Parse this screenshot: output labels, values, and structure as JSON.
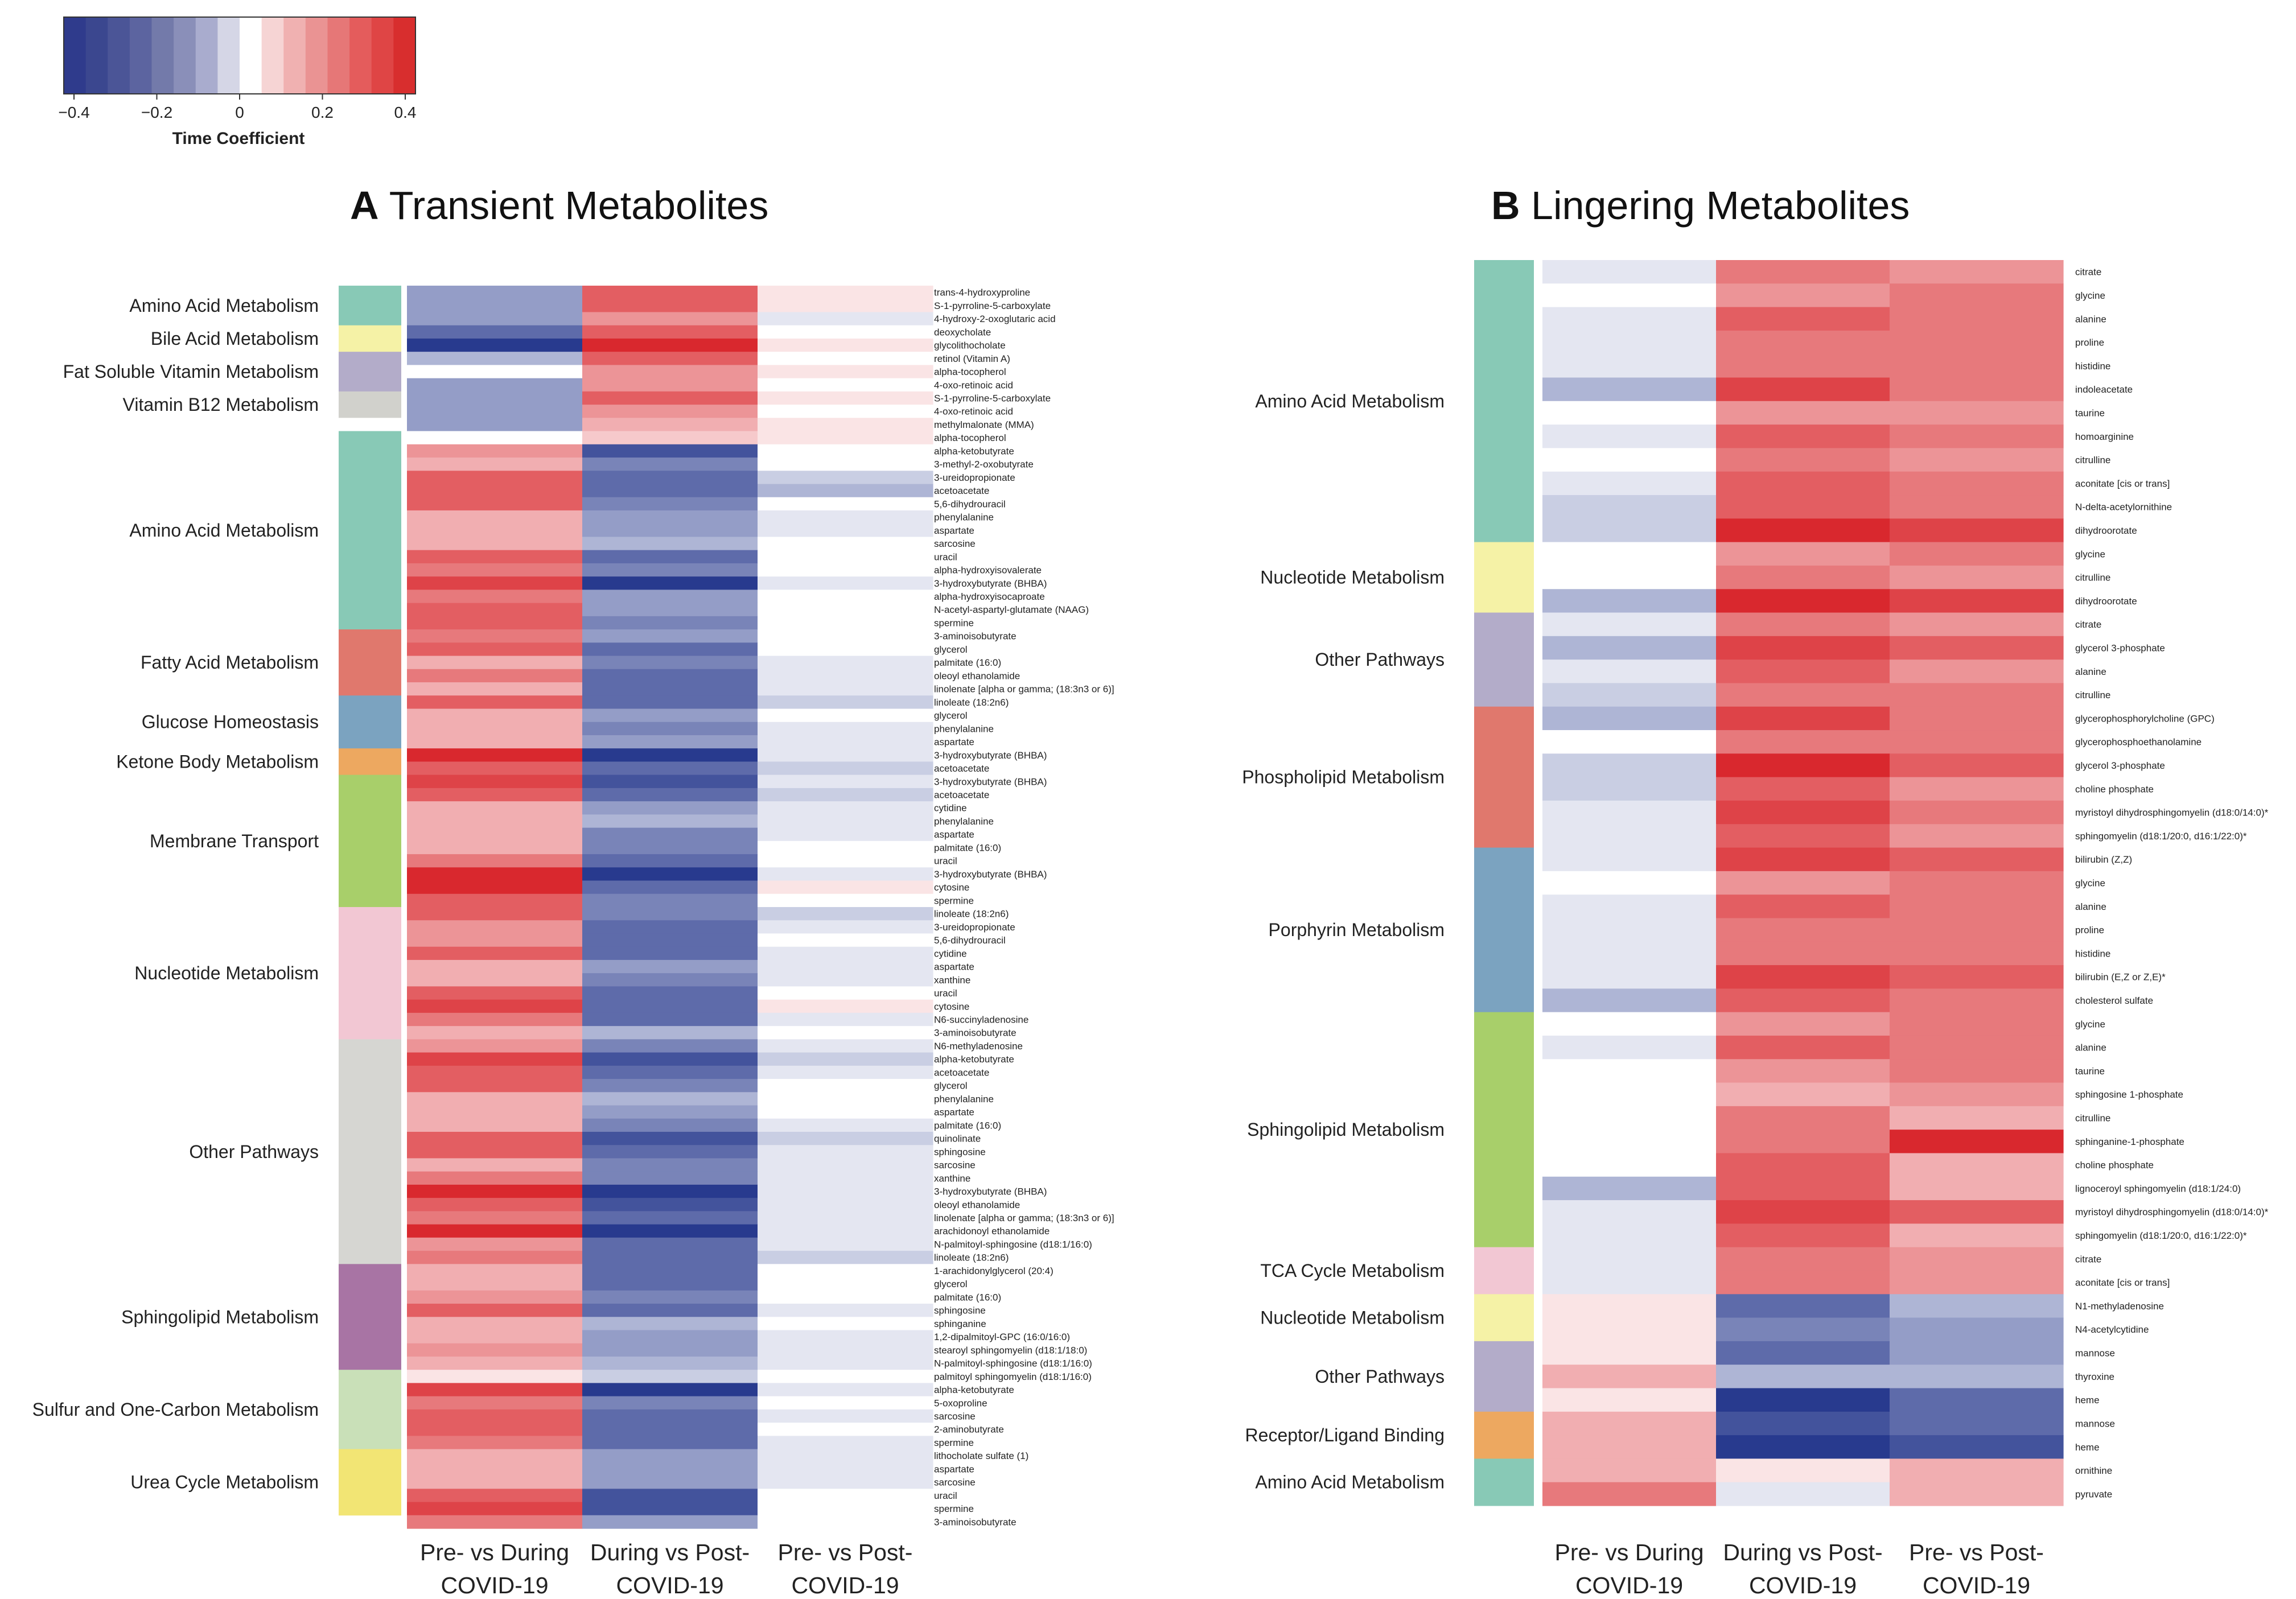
{
  "chart_data": [
    {
      "type": "heatmap",
      "panel_letter": "A",
      "title": "Transient Metabolites",
      "columns": [
        "Pre- vs During COVID-19",
        "During vs Post-COVID-19",
        "Pre- vs Post-COVID-19"
      ],
      "categories": [
        {
          "name": "Amino Acid Metabolism",
          "color": "#88c9b6",
          "rows": [
            0,
            3
          ]
        },
        {
          "name": "Bile Acid Metabolism",
          "color": "#f5f2a6",
          "rows": [
            3,
            5
          ]
        },
        {
          "name": "Fat Soluble Vitamin Metabolism",
          "color": "#b3acc9",
          "rows": [
            5,
            8
          ]
        },
        {
          "name": "Vitamin B12 Metabolism",
          "color": "#d1d1cc",
          "rows": [
            8,
            10
          ]
        },
        {
          "name": "",
          "color": "#ffffff",
          "rows": [
            10,
            11
          ]
        },
        {
          "name": "Amino Acid Metabolism",
          "color": "#88c9b6",
          "rows": [
            11,
            26
          ]
        },
        {
          "name": "Fatty Acid Metabolism",
          "color": "#e0786d",
          "rows": [
            26,
            31
          ]
        },
        {
          "name": "Glucose Homeostasis",
          "color": "#7ba3c0",
          "rows": [
            31,
            35
          ]
        },
        {
          "name": "Ketone Body Metabolism",
          "color": "#eda860",
          "rows": [
            35,
            37
          ]
        },
        {
          "name": "Membrane Transport",
          "color": "#a8cf6a",
          "rows": [
            37,
            47
          ]
        },
        {
          "name": "Nucleotide Metabolism",
          "color": "#f2c7d3",
          "rows": [
            47,
            57
          ]
        },
        {
          "name": "Other Pathways",
          "color": "#d6d6d2",
          "rows": [
            57,
            74
          ]
        },
        {
          "name": "Sphingolipid Metabolism",
          "color": "#a874a4",
          "rows": [
            74,
            82
          ]
        },
        {
          "name": "Sulfur and One-Carbon Metabolism",
          "color": "#c9e0b8",
          "rows": [
            82,
            88
          ]
        },
        {
          "name": "Urea Cycle Metabolism",
          "color": "#f2e574",
          "rows": [
            88,
            93
          ]
        }
      ],
      "rows": [
        "trans-4-hydroxyproline",
        "S-1-pyrroline-5-carboxylate",
        "4-hydroxy-2-oxoglutaric acid",
        "deoxycholate",
        "glycolithocholate",
        "retinol (Vitamin A)",
        "alpha-tocopherol",
        "4-oxo-retinoic acid",
        "S-1-pyrroline-5-carboxylate",
        "4-oxo-retinoic acid",
        "methylmalonate (MMA)",
        "alpha-tocopherol",
        "alpha-ketobutyrate",
        "3-methyl-2-oxobutyrate",
        "3-ureidopropionate",
        "acetoacetate",
        "5,6-dihydrouracil",
        "phenylalanine",
        "aspartate",
        "sarcosine",
        "uracil",
        "alpha-hydroxyisovalerate",
        "3-hydroxybutyrate (BHBA)",
        "alpha-hydroxyisocaproate",
        "N-acetyl-aspartyl-glutamate (NAAG)",
        "spermine",
        "3-aminoisobutyrate",
        "glycerol",
        "palmitate (16:0)",
        "oleoyl ethanolamide",
        "linolenate [alpha or gamma; (18:3n3 or 6)]",
        "linoleate (18:2n6)",
        "glycerol",
        "phenylalanine",
        "aspartate",
        "3-hydroxybutyrate (BHBA)",
        "acetoacetate",
        "3-hydroxybutyrate (BHBA)",
        "acetoacetate",
        "cytidine",
        "phenylalanine",
        "aspartate",
        "palmitate (16:0)",
        "uracil",
        "3-hydroxybutyrate (BHBA)",
        "cytosine",
        "spermine",
        "linoleate (18:2n6)",
        "3-ureidopropionate",
        "5,6-dihydrouracil",
        "cytidine",
        "aspartate",
        "xanthine",
        "uracil",
        "cytosine",
        "N6-succinyladenosine",
        "3-aminoisobutyrate",
        "N6-methyladenosine",
        "alpha-ketobutyrate",
        "acetoacetate",
        "glycerol",
        "phenylalanine",
        "aspartate",
        "palmitate (16:0)",
        "quinolinate",
        "sphingosine",
        "sarcosine",
        "xanthine",
        "3-hydroxybutyrate (BHBA)",
        "oleoyl ethanolamide",
        "linolenate [alpha or gamma; (18:3n3 or 6)]",
        "arachidonoyl ethanolamide",
        "N-palmitoyl-sphingosine (d18:1/16:0)",
        "linoleate (18:2n6)",
        "1-arachidonylglycerol (20:4)",
        "glycerol",
        "palmitate (16:0)",
        "sphingosine",
        "sphinganine",
        "1,2-dipalmitoyl-GPC (16:0/16:0)",
        "stearoyl sphingomyelin (d18:1/18:0)",
        "N-palmitoyl-sphingosine (d18:1/16:0)",
        "palmitoyl sphingomyelin (d18:1/16:0)",
        "alpha-ketobutyrate",
        "5-oxoproline",
        "sarcosine",
        "2-aminobutyrate",
        "spermine",
        "lithocholate sulfate (1)",
        "aspartate",
        "sarcosine",
        "uracil",
        "spermine",
        "3-aminoisobutyrate"
      ],
      "values": [
        [
          -0.2,
          0.3,
          0.05
        ],
        [
          -0.2,
          0.3,
          0.05
        ],
        [
          -0.2,
          0.2,
          -0.05
        ],
        [
          -0.3,
          0.3,
          0
        ],
        [
          -0.4,
          0.4,
          0.05
        ],
        [
          -0.15,
          0.3,
          0
        ],
        [
          0,
          0.2,
          0.05
        ],
        [
          -0.2,
          0.2,
          0
        ],
        [
          -0.2,
          0.3,
          0.05
        ],
        [
          -0.2,
          0.2,
          0
        ],
        [
          -0.2,
          0.15,
          0.05
        ],
        [
          0,
          0.1,
          0.05
        ],
        [
          0.2,
          -0.35,
          0
        ],
        [
          0.15,
          -0.25,
          0
        ],
        [
          0.3,
          -0.3,
          -0.1
        ],
        [
          0.3,
          -0.3,
          -0.15
        ],
        [
          0.3,
          -0.25,
          0
        ],
        [
          0.15,
          -0.2,
          -0.05
        ],
        [
          0.15,
          -0.2,
          -0.05
        ],
        [
          0.15,
          -0.15,
          0
        ],
        [
          0.3,
          -0.3,
          0
        ],
        [
          0.25,
          -0.25,
          0
        ],
        [
          0.35,
          -0.4,
          -0.05
        ],
        [
          0.25,
          -0.2,
          0
        ],
        [
          0.3,
          -0.2,
          0
        ],
        [
          0.3,
          -0.25,
          0
        ],
        [
          0.25,
          -0.2,
          0
        ],
        [
          0.3,
          -0.3,
          0
        ],
        [
          0.15,
          -0.25,
          -0.05
        ],
        [
          0.25,
          -0.3,
          -0.05
        ],
        [
          0.15,
          -0.3,
          -0.05
        ],
        [
          0.3,
          -0.3,
          -0.1
        ],
        [
          0.15,
          -0.2,
          0
        ],
        [
          0.15,
          -0.25,
          -0.05
        ],
        [
          0.15,
          -0.2,
          -0.05
        ],
        [
          0.4,
          -0.4,
          -0.05
        ],
        [
          0.3,
          -0.3,
          -0.1
        ],
        [
          0.35,
          -0.35,
          -0.05
        ],
        [
          0.3,
          -0.3,
          -0.1
        ],
        [
          0.15,
          -0.2,
          -0.05
        ],
        [
          0.15,
          -0.15,
          -0.05
        ],
        [
          0.15,
          -0.25,
          -0.05
        ],
        [
          0.15,
          -0.25,
          0
        ],
        [
          0.25,
          -0.3,
          0
        ],
        [
          0.4,
          -0.4,
          -0.05
        ],
        [
          0.4,
          -0.3,
          0.05
        ],
        [
          0.3,
          -0.25,
          0
        ],
        [
          0.3,
          -0.25,
          -0.1
        ],
        [
          0.2,
          -0.3,
          -0.05
        ],
        [
          0.2,
          -0.3,
          0
        ],
        [
          0.3,
          -0.3,
          -0.05
        ],
        [
          0.15,
          -0.2,
          -0.05
        ],
        [
          0.15,
          -0.25,
          -0.05
        ],
        [
          0.3,
          -0.3,
          0
        ],
        [
          0.35,
          -0.3,
          0.05
        ],
        [
          0.25,
          -0.3,
          -0.05
        ],
        [
          0.15,
          -0.15,
          0
        ],
        [
          0.2,
          -0.25,
          -0.05
        ],
        [
          0.35,
          -0.35,
          -0.1
        ],
        [
          0.3,
          -0.3,
          -0.05
        ],
        [
          0.3,
          -0.25,
          0
        ],
        [
          0.15,
          -0.15,
          0
        ],
        [
          0.15,
          -0.2,
          0
        ],
        [
          0.15,
          -0.25,
          -0.05
        ],
        [
          0.3,
          -0.35,
          -0.1
        ],
        [
          0.3,
          -0.3,
          -0.05
        ],
        [
          0.15,
          -0.25,
          -0.05
        ],
        [
          0.25,
          -0.25,
          -0.05
        ],
        [
          0.4,
          -0.4,
          -0.05
        ],
        [
          0.3,
          -0.35,
          -0.05
        ],
        [
          0.25,
          -0.3,
          -0.05
        ],
        [
          0.4,
          -0.4,
          -0.05
        ],
        [
          0.2,
          -0.3,
          -0.05
        ],
        [
          0.25,
          -0.3,
          -0.1
        ],
        [
          0.15,
          -0.3,
          0
        ],
        [
          0.15,
          -0.3,
          0
        ],
        [
          0.2,
          -0.25,
          0
        ],
        [
          0.3,
          -0.3,
          -0.05
        ],
        [
          0.15,
          -0.15,
          0
        ],
        [
          0.15,
          -0.2,
          -0.05
        ],
        [
          0.2,
          -0.2,
          -0.05
        ],
        [
          0.15,
          -0.15,
          -0.05
        ],
        [
          0.05,
          -0.1,
          0
        ],
        [
          0.35,
          -0.4,
          -0.05
        ],
        [
          0.25,
          -0.25,
          0
        ],
        [
          0.3,
          -0.3,
          -0.05
        ],
        [
          0.3,
          -0.3,
          0
        ],
        [
          0.25,
          -0.3,
          -0.05
        ],
        [
          0.15,
          -0.2,
          -0.05
        ],
        [
          0.15,
          -0.2,
          -0.05
        ],
        [
          0.15,
          -0.2,
          -0.05
        ],
        [
          0.3,
          -0.35,
          0
        ],
        [
          0.35,
          -0.35,
          0
        ],
        [
          0.25,
          -0.2,
          0
        ]
      ]
    },
    {
      "type": "heatmap",
      "panel_letter": "B",
      "title": "Lingering Metabolites",
      "columns": [
        "Pre- vs During COVID-19",
        "During vs Post-COVID-19",
        "Pre- vs Post-COVID-19"
      ],
      "categories": [
        {
          "name": "Amino Acid Metabolism",
          "color": "#88c9b6",
          "rows": [
            0,
            12
          ]
        },
        {
          "name": "Nucleotide Metabolism",
          "color": "#f5f2a6",
          "rows": [
            12,
            15
          ]
        },
        {
          "name": "Other Pathways",
          "color": "#b3acc9",
          "rows": [
            15,
            19
          ]
        },
        {
          "name": "Phospholipid Metabolism",
          "color": "#e0786d",
          "rows": [
            19,
            25
          ]
        },
        {
          "name": "Porphyrin Metabolism",
          "color": "#7ba3c0",
          "rows": [
            25,
            32
          ]
        },
        {
          "name": "Sphingolipid Metabolism",
          "color": "#a8cf6a",
          "rows": [
            32,
            42
          ]
        },
        {
          "name": "TCA Cycle Metabolism",
          "color": "#f2c7d3",
          "rows": [
            42,
            44
          ]
        },
        {
          "name": "Nucleotide Metabolism",
          "color": "#f5f2a6",
          "rows": [
            44,
            46
          ]
        },
        {
          "name": "Other Pathways",
          "color": "#b3acc9",
          "rows": [
            46,
            49
          ]
        },
        {
          "name": "Receptor/Ligand Binding",
          "color": "#eda860",
          "rows": [
            49,
            51
          ]
        },
        {
          "name": "Amino Acid Metabolism",
          "color": "#88c9b6",
          "rows": [
            51,
            53
          ]
        }
      ],
      "rows": [
        "citrate",
        "glycine",
        "alanine",
        "proline",
        "histidine",
        "indoleacetate",
        "taurine",
        "homoarginine",
        "citrulline",
        "aconitate [cis or trans]",
        "N-delta-acetylornithine",
        "dihydroorotate",
        "glycine",
        "citrulline",
        "dihydroorotate",
        "citrate",
        "glycerol 3-phosphate",
        "alanine",
        "citrulline",
        "glycerophosphorylcholine (GPC)",
        "glycerophosphoethanolamine",
        "glycerol 3-phosphate",
        "choline phosphate",
        "myristoyl dihydrosphingomyelin (d18:0/14:0)*",
        "sphingomyelin (d18:1/20:0, d16:1/22:0)*",
        "bilirubin (Z,Z)",
        "glycine",
        "alanine",
        "proline",
        "histidine",
        "bilirubin (E,Z or Z,E)*",
        "cholesterol sulfate",
        "glycine",
        "alanine",
        "taurine",
        "sphingosine 1-phosphate",
        "citrulline",
        "sphinganine-1-phosphate",
        "choline phosphate",
        "lignoceroyl sphingomyelin (d18:1/24:0)",
        "myristoyl dihydrosphingomyelin (d18:0/14:0)*",
        "sphingomyelin (d18:1/20:0, d16:1/22:0)*",
        "citrate",
        "aconitate [cis or trans]",
        "N1-methyladenosine",
        "N4-acetylcytidine",
        "mannose",
        "thyroxine",
        "heme",
        "mannose",
        "heme",
        "ornithine",
        "pyruvate"
      ],
      "values": [
        [
          -0.05,
          0.25,
          0.2
        ],
        [
          0,
          0.2,
          0.25
        ],
        [
          -0.05,
          0.3,
          0.25
        ],
        [
          -0.05,
          0.25,
          0.25
        ],
        [
          -0.05,
          0.25,
          0.25
        ],
        [
          -0.15,
          0.35,
          0.25
        ],
        [
          0,
          0.2,
          0.2
        ],
        [
          -0.05,
          0.3,
          0.25
        ],
        [
          0,
          0.25,
          0.2
        ],
        [
          -0.05,
          0.3,
          0.25
        ],
        [
          -0.1,
          0.3,
          0.25
        ],
        [
          -0.1,
          0.4,
          0.35
        ],
        [
          0,
          0.2,
          0.25
        ],
        [
          0,
          0.25,
          0.2
        ],
        [
          -0.15,
          0.4,
          0.35
        ],
        [
          -0.05,
          0.25,
          0.2
        ],
        [
          -0.15,
          0.35,
          0.3
        ],
        [
          -0.05,
          0.3,
          0.2
        ],
        [
          -0.1,
          0.25,
          0.25
        ],
        [
          -0.15,
          0.35,
          0.25
        ],
        [
          0,
          0.25,
          0.25
        ],
        [
          -0.1,
          0.4,
          0.3
        ],
        [
          -0.1,
          0.3,
          0.2
        ],
        [
          -0.05,
          0.35,
          0.25
        ],
        [
          -0.05,
          0.3,
          0.2
        ],
        [
          -0.05,
          0.35,
          0.3
        ],
        [
          0,
          0.2,
          0.25
        ],
        [
          -0.05,
          0.3,
          0.25
        ],
        [
          -0.05,
          0.25,
          0.25
        ],
        [
          -0.05,
          0.25,
          0.25
        ],
        [
          -0.05,
          0.35,
          0.3
        ],
        [
          -0.15,
          0.3,
          0.25
        ],
        [
          0,
          0.2,
          0.25
        ],
        [
          -0.05,
          0.3,
          0.25
        ],
        [
          0,
          0.2,
          0.25
        ],
        [
          0,
          0.15,
          0.2
        ],
        [
          0,
          0.25,
          0.15
        ],
        [
          0,
          0.25,
          0.4
        ],
        [
          0,
          0.3,
          0.15
        ],
        [
          -0.15,
          0.3,
          0.15
        ],
        [
          -0.05,
          0.35,
          0.3
        ],
        [
          -0.05,
          0.3,
          0.15
        ],
        [
          -0.05,
          0.25,
          0.2
        ],
        [
          -0.05,
          0.25,
          0.2
        ],
        [
          0.05,
          -0.3,
          -0.15
        ],
        [
          0.05,
          -0.25,
          -0.2
        ],
        [
          0.05,
          -0.3,
          -0.2
        ],
        [
          0.15,
          -0.15,
          -0.15
        ],
        [
          0.05,
          -0.4,
          -0.3
        ],
        [
          0.15,
          -0.35,
          -0.3
        ],
        [
          0.15,
          -0.4,
          -0.35
        ],
        [
          0.15,
          0.05,
          0.15
        ],
        [
          0.25,
          -0.05,
          0.15
        ]
      ]
    }
  ],
  "colorbar": {
    "title": "Time Coefficient",
    "ticks": [
      "−0.4",
      "−0.2",
      "0",
      "0.2",
      "0.4"
    ],
    "colors": [
      "#2f3b8c",
      "#3b478f",
      "#4b5597",
      "#5c64a0",
      "#737aaa",
      "#8a8fb9",
      "#a9acce",
      "#d5d6e6",
      "#ffffff",
      "#f6d4d4",
      "#f0b1b1",
      "#ea9393",
      "#e67777",
      "#e45c5c",
      "#df4545",
      "#d82e2e"
    ]
  }
}
